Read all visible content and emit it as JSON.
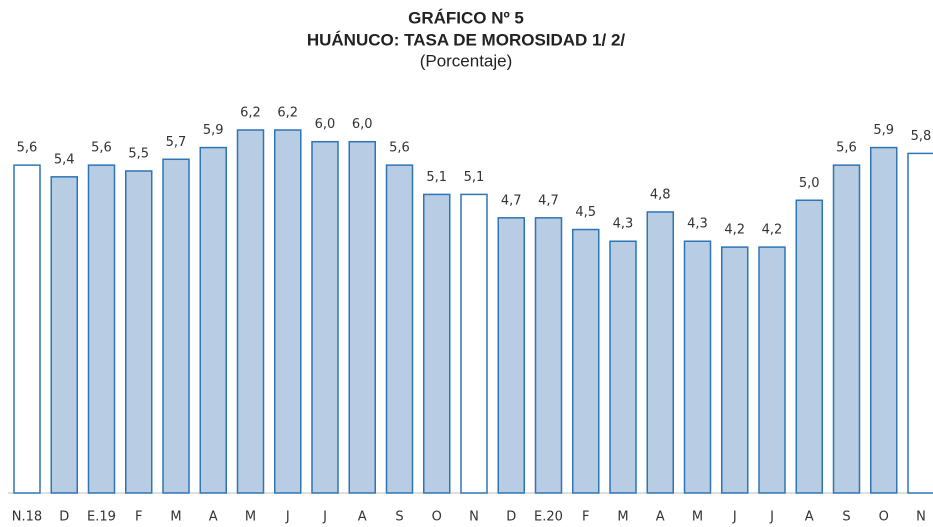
{
  "chart_data": {
    "type": "bar",
    "title": "GRÁFICO Nº 5",
    "subtitle": "HUÁNUCO: TASA DE MOROSIDAD 1/ 2/",
    "unit_label": "(Porcentaje)",
    "categories": [
      "N.18",
      "D",
      "E.19",
      "F",
      "M",
      "A",
      "M",
      "J",
      "J",
      "A",
      "S",
      "O",
      "N",
      "D",
      "E.20",
      "F",
      "M",
      "A",
      "M",
      "J",
      "J",
      "A",
      "S",
      "O",
      "N"
    ],
    "values": [
      5.6,
      5.4,
      5.6,
      5.5,
      5.7,
      5.9,
      6.2,
      6.2,
      6.0,
      6.0,
      5.6,
      5.1,
      5.1,
      4.7,
      4.7,
      4.5,
      4.3,
      4.8,
      4.3,
      4.2,
      4.2,
      5.0,
      5.6,
      5.9,
      5.8
    ],
    "value_labels": [
      "5,6",
      "5,4",
      "5,6",
      "5,5",
      "5,7",
      "5,9",
      "6,2",
      "6,2",
      "6,0",
      "6,0",
      "5,6",
      "5,1",
      "5,1",
      "4,7",
      "4,7",
      "4,5",
      "4,3",
      "4,8",
      "4,3",
      "4,2",
      "4,2",
      "5,0",
      "5,6",
      "5,9",
      "5,8"
    ],
    "colors": [
      "#ffffff",
      "#b8cce4",
      "#b8cce4",
      "#b8cce4",
      "#b8cce4",
      "#b8cce4",
      "#b8cce4",
      "#b8cce4",
      "#b8cce4",
      "#b8cce4",
      "#b8cce4",
      "#b8cce4",
      "#ffffff",
      "#b8cce4",
      "#b8cce4",
      "#b8cce4",
      "#b8cce4",
      "#b8cce4",
      "#b8cce4",
      "#b8cce4",
      "#b8cce4",
      "#b8cce4",
      "#b8cce4",
      "#b8cce4",
      "#ffffff"
    ],
    "edge_color": "#2e75b6",
    "ylim": [
      0,
      6.2
    ]
  }
}
